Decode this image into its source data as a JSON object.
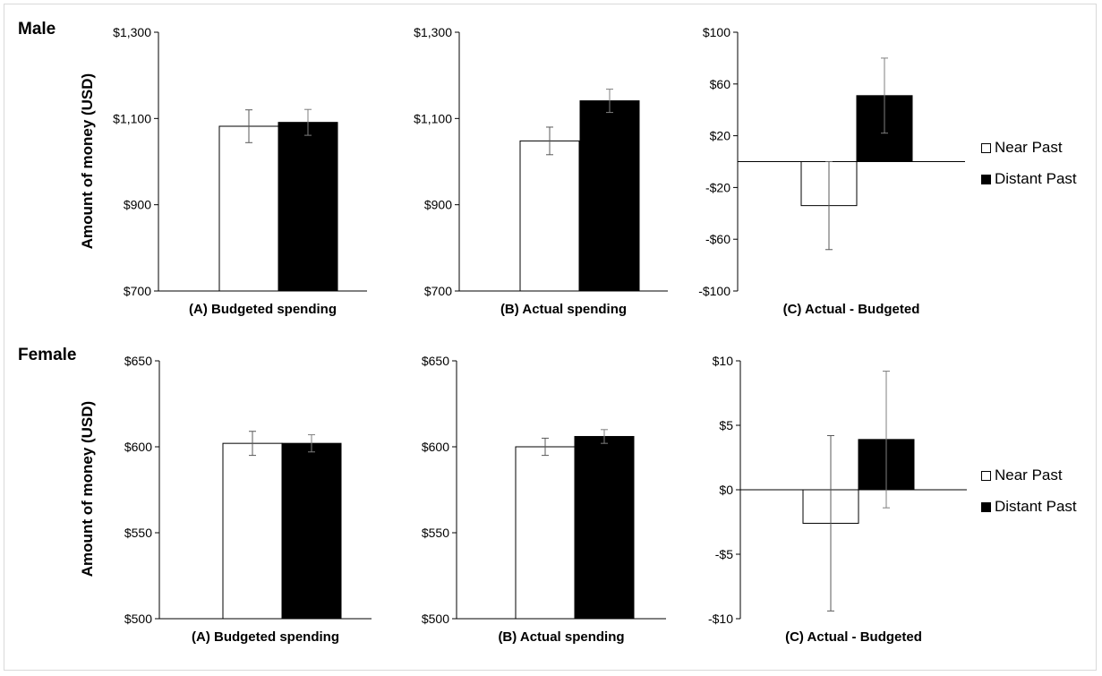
{
  "rows": [
    {
      "label": "Male",
      "ylabel": "Amount of money (USD)"
    },
    {
      "label": "Female",
      "ylabel": "Amount of money (USD)"
    }
  ],
  "legend": [
    {
      "label": "Near Past",
      "color": "#ffffff"
    },
    {
      "label": "Distant Past",
      "color": "#000000"
    }
  ],
  "colors": {
    "near": "#ffffff",
    "distant": "#000000",
    "stroke": "#000000",
    "error": "#595959"
  },
  "chart_data": [
    {
      "id": "male-a",
      "type": "bar",
      "xlabel": "(A) Budgeted spending",
      "ylim": [
        700,
        1300
      ],
      "ticks": [
        700,
        900,
        1100,
        1300
      ],
      "tick_labels": [
        "$700",
        "$900",
        "$1,100",
        "$1,300"
      ],
      "series": [
        {
          "name": "Near Past",
          "value": 1082,
          "error": 38
        },
        {
          "name": "Distant Past",
          "value": 1091,
          "error": 30
        }
      ]
    },
    {
      "id": "male-b",
      "type": "bar",
      "xlabel": "(B) Actual spending",
      "ylim": [
        700,
        1300
      ],
      "ticks": [
        700,
        900,
        1100,
        1300
      ],
      "tick_labels": [
        "$700",
        "$900",
        "$1,100",
        "$1,300"
      ],
      "series": [
        {
          "name": "Near Past",
          "value": 1048,
          "error": 32
        },
        {
          "name": "Distant Past",
          "value": 1141,
          "error": 27
        }
      ]
    },
    {
      "id": "male-c",
      "type": "bar",
      "xlabel": "(C) Actual - Budgeted",
      "ylim": [
        -100,
        100
      ],
      "ticks": [
        -100,
        -60,
        -20,
        20,
        60,
        100
      ],
      "tick_labels": [
        "-$100",
        "-$60",
        "-$20",
        "$20",
        "$60",
        "$100"
      ],
      "series": [
        {
          "name": "Near Past",
          "value": -34,
          "error": 34
        },
        {
          "name": "Distant Past",
          "value": 51,
          "error": 29
        }
      ]
    },
    {
      "id": "female-a",
      "type": "bar",
      "xlabel": "(A) Budgeted spending",
      "ylim": [
        500,
        650
      ],
      "ticks": [
        500,
        550,
        600,
        650
      ],
      "tick_labels": [
        "$500",
        "$550",
        "$600",
        "$650"
      ],
      "series": [
        {
          "name": "Near Past",
          "value": 602,
          "error": 7
        },
        {
          "name": "Distant Past",
          "value": 602,
          "error": 5
        }
      ]
    },
    {
      "id": "female-b",
      "type": "bar",
      "xlabel": "(B) Actual spending",
      "ylim": [
        500,
        650
      ],
      "ticks": [
        500,
        550,
        600,
        650
      ],
      "tick_labels": [
        "$500",
        "$550",
        "$600",
        "$650"
      ],
      "series": [
        {
          "name": "Near Past",
          "value": 600,
          "error": 5
        },
        {
          "name": "Distant Past",
          "value": 606,
          "error": 4
        }
      ]
    },
    {
      "id": "female-c",
      "type": "bar",
      "xlabel": "(C) Actual - Budgeted",
      "ylim": [
        -10,
        10
      ],
      "ticks": [
        -10,
        -5,
        0,
        5,
        10
      ],
      "tick_labels": [
        "-$10",
        "-$5",
        "$0",
        "$5",
        "$10"
      ],
      "series": [
        {
          "name": "Near Past",
          "value": -2.6,
          "error": 6.8
        },
        {
          "name": "Distant Past",
          "value": 3.9,
          "error": 5.3
        }
      ]
    }
  ]
}
